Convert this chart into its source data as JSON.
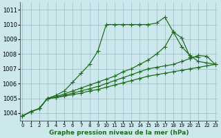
{
  "xlabel": "Graphe pression niveau de la mer (hPa)",
  "background_color": "#cce8ec",
  "grid_color": "#9bbec4",
  "line_color": "#1e6b1e",
  "ylim": [
    1003.5,
    1011.5
  ],
  "xlim": [
    -0.3,
    23.3
  ],
  "yticks": [
    1004,
    1005,
    1006,
    1007,
    1008,
    1009,
    1010,
    1011
  ],
  "xticks": [
    0,
    1,
    2,
    3,
    4,
    5,
    6,
    7,
    8,
    9,
    10,
    11,
    12,
    13,
    14,
    15,
    16,
    17,
    18,
    19,
    20,
    21,
    22,
    23
  ],
  "series": [
    {
      "x": [
        0,
        1,
        2,
        3,
        4,
        5,
        6,
        7,
        8,
        9,
        10,
        11,
        12,
        13,
        14,
        15,
        16,
        17,
        18,
        19,
        20,
        21,
        22,
        23
      ],
      "y": [
        1003.8,
        1004.1,
        1004.3,
        1005.0,
        1005.2,
        1005.5,
        1006.1,
        1006.7,
        1007.3,
        1008.2,
        1010.0,
        1010.0,
        1010.0,
        1010.0,
        1010.0,
        1010.0,
        1010.1,
        1010.5,
        1009.5,
        1008.5,
        1007.9,
        1007.5,
        1007.4,
        1007.3
      ]
    },
    {
      "x": [
        0,
        1,
        2,
        3,
        4,
        5,
        6,
        7,
        8,
        9,
        10,
        11,
        12,
        13,
        14,
        15,
        16,
        17,
        18,
        19,
        20,
        21
      ],
      "y": [
        1003.8,
        1004.1,
        1004.3,
        1005.0,
        1005.1,
        1005.3,
        1005.5,
        1005.7,
        1005.9,
        1006.1,
        1006.3,
        1006.5,
        1006.8,
        1007.0,
        1007.3,
        1007.6,
        1008.0,
        1008.5,
        1009.5,
        1009.1,
        1007.8,
        1007.8
      ]
    },
    {
      "x": [
        0,
        1,
        2,
        3,
        4,
        5,
        6,
        7,
        8,
        9,
        10,
        11,
        12,
        13,
        14,
        15,
        16,
        17,
        18,
        19,
        20,
        21,
        22,
        23
      ],
      "y": [
        1003.8,
        1004.1,
        1004.3,
        1005.0,
        1005.05,
        1005.2,
        1005.35,
        1005.5,
        1005.65,
        1005.8,
        1006.0,
        1006.2,
        1006.4,
        1006.6,
        1006.8,
        1007.0,
        1007.1,
        1007.2,
        1007.3,
        1007.5,
        1007.7,
        1007.9,
        1007.85,
        1007.3
      ]
    },
    {
      "x": [
        0,
        1,
        2,
        3,
        4,
        5,
        6,
        7,
        8,
        9,
        10,
        11,
        12,
        13,
        14,
        15,
        16,
        17,
        18,
        19,
        20,
        21,
        22,
        23
      ],
      "y": [
        1003.8,
        1004.1,
        1004.3,
        1005.0,
        1005.05,
        1005.15,
        1005.25,
        1005.35,
        1005.5,
        1005.6,
        1005.75,
        1005.9,
        1006.05,
        1006.2,
        1006.35,
        1006.5,
        1006.6,
        1006.7,
        1006.8,
        1006.9,
        1007.0,
        1007.1,
        1007.2,
        1007.3
      ]
    }
  ]
}
